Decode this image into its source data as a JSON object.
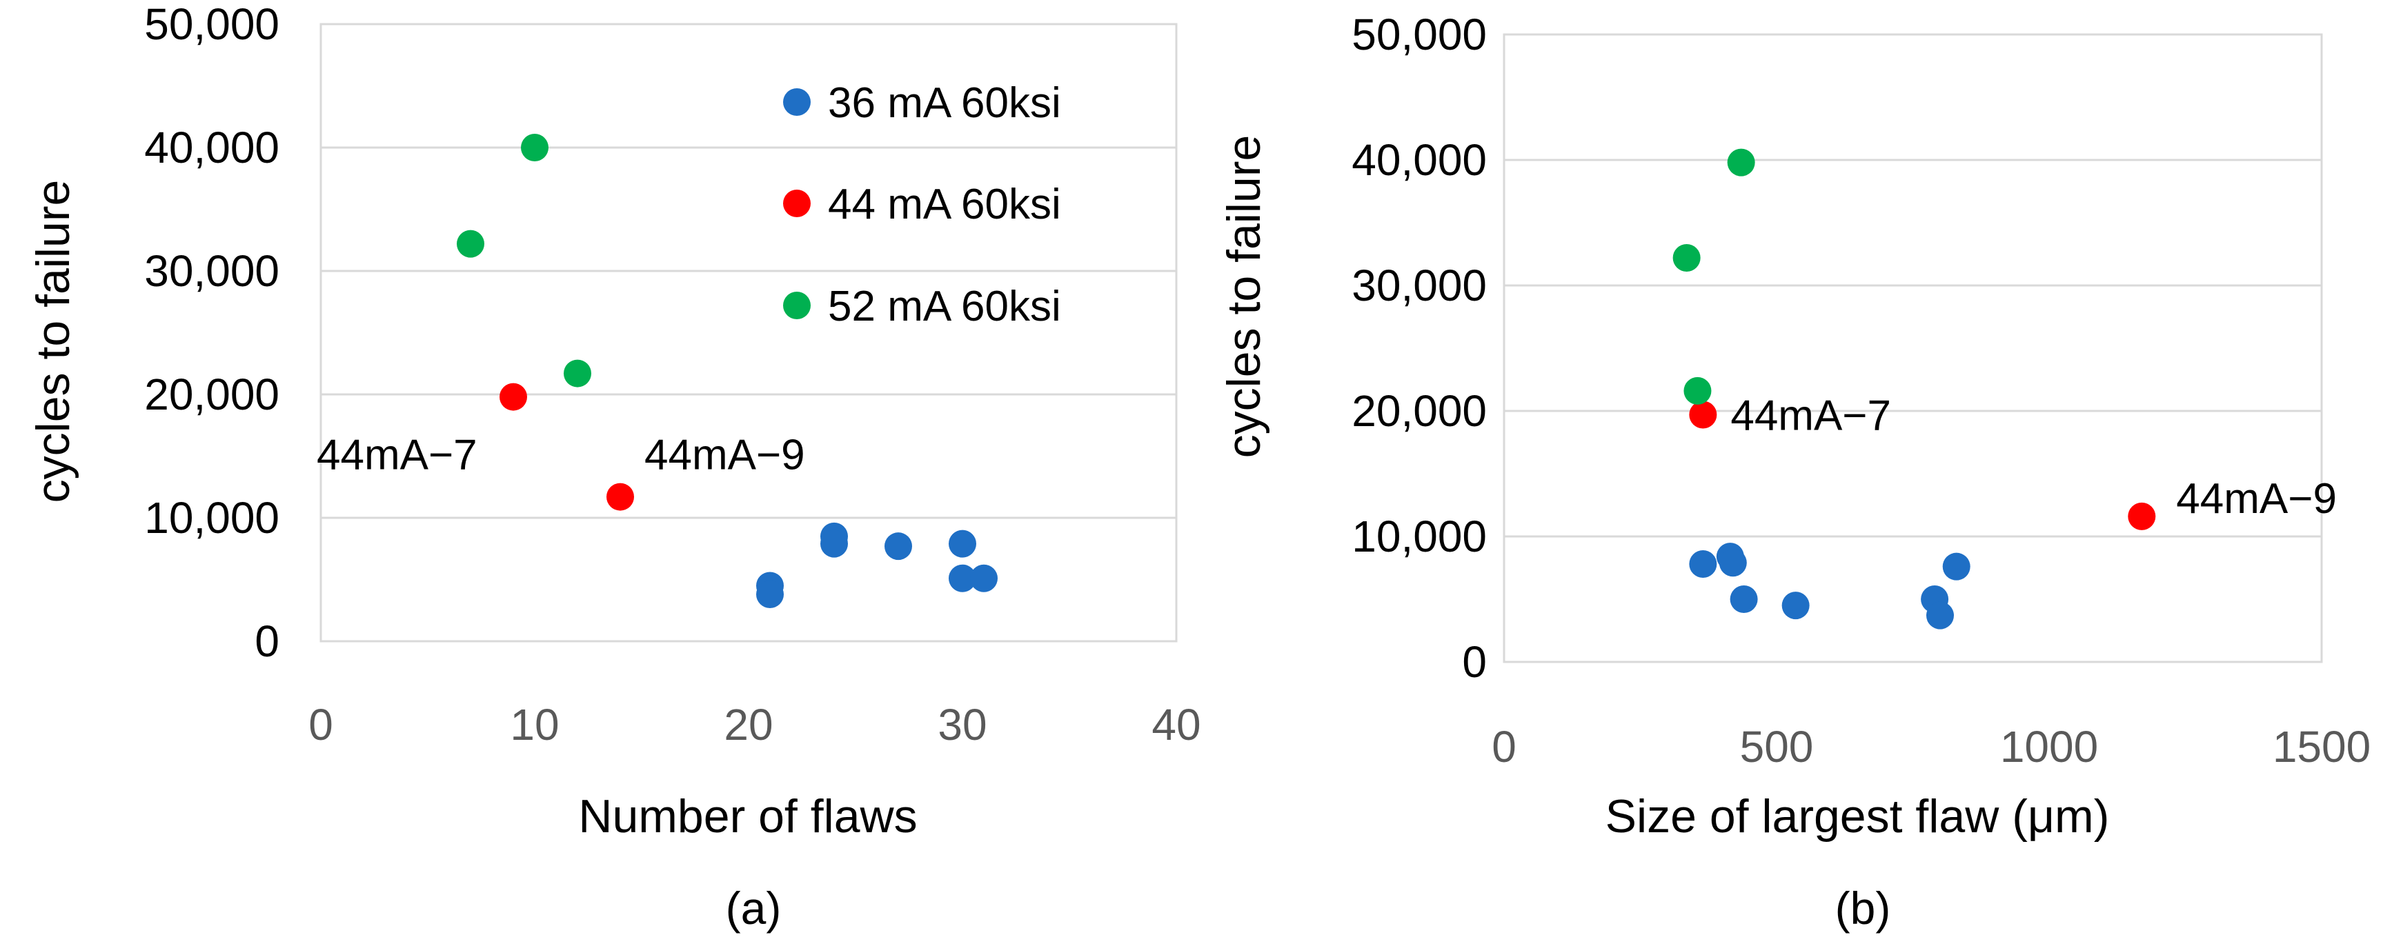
{
  "chart_data": [
    {
      "type": "scatter",
      "panel": "(a)",
      "xlabel": "Number of flaws",
      "ylabel": "cycles to failure",
      "xlim": [
        0,
        40
      ],
      "ylim": [
        0,
        50000
      ],
      "xticks": [
        "0",
        "10",
        "20",
        "30",
        "40"
      ],
      "yticks": [
        "0",
        "10,000",
        "20,000",
        "30,000",
        "40,000",
        "50,000"
      ],
      "legend_position": "top-right",
      "series": [
        {
          "name": "36 mA 60ksi",
          "color": "#1f6fc5",
          "points": [
            {
              "x": 21,
              "y": 4500
            },
            {
              "x": 21,
              "y": 3800
            },
            {
              "x": 24,
              "y": 8500
            },
            {
              "x": 24,
              "y": 7900
            },
            {
              "x": 27,
              "y": 7700
            },
            {
              "x": 30,
              "y": 7900
            },
            {
              "x": 30,
              "y": 5100
            },
            {
              "x": 31,
              "y": 5100
            }
          ]
        },
        {
          "name": "44 mA 60ksi",
          "color": "#ff0000",
          "points": [
            {
              "x": 9,
              "y": 19800,
              "label": "44mA−7"
            },
            {
              "x": 14,
              "y": 11700,
              "label": "44mA−9"
            }
          ]
        },
        {
          "name": "52 mA 60ksi",
          "color": "#00b050",
          "points": [
            {
              "x": 10,
              "y": 40000
            },
            {
              "x": 7,
              "y": 32200
            },
            {
              "x": 12,
              "y": 21700
            }
          ]
        }
      ]
    },
    {
      "type": "scatter",
      "panel": "(b)",
      "xlabel": "Size of largest flaw (μm)",
      "ylabel": "cycles to failure",
      "xlim": [
        0,
        1500
      ],
      "ylim": [
        0,
        50000
      ],
      "xticks": [
        "0",
        "500",
        "1000",
        "1500"
      ],
      "yticks": [
        "0",
        "10,000",
        "20,000",
        "30,000",
        "40,000",
        "50,000"
      ],
      "series": [
        {
          "name": "36 mA 60ksi",
          "color": "#1f6fc5",
          "points": [
            {
              "x": 365,
              "y": 7800
            },
            {
              "x": 415,
              "y": 8400
            },
            {
              "x": 420,
              "y": 7900
            },
            {
              "x": 440,
              "y": 5000
            },
            {
              "x": 535,
              "y": 4500
            },
            {
              "x": 790,
              "y": 5000
            },
            {
              "x": 800,
              "y": 3700
            },
            {
              "x": 830,
              "y": 7600
            }
          ]
        },
        {
          "name": "44 mA 60ksi",
          "color": "#ff0000",
          "points": [
            {
              "x": 365,
              "y": 19700,
              "label": "44mA−7"
            },
            {
              "x": 1170,
              "y": 11600,
              "label": "44mA−9"
            }
          ]
        },
        {
          "name": "52 mA 60ksi",
          "color": "#00b050",
          "points": [
            {
              "x": 435,
              "y": 39800
            },
            {
              "x": 335,
              "y": 32200
            },
            {
              "x": 355,
              "y": 21600
            }
          ]
        }
      ]
    }
  ]
}
